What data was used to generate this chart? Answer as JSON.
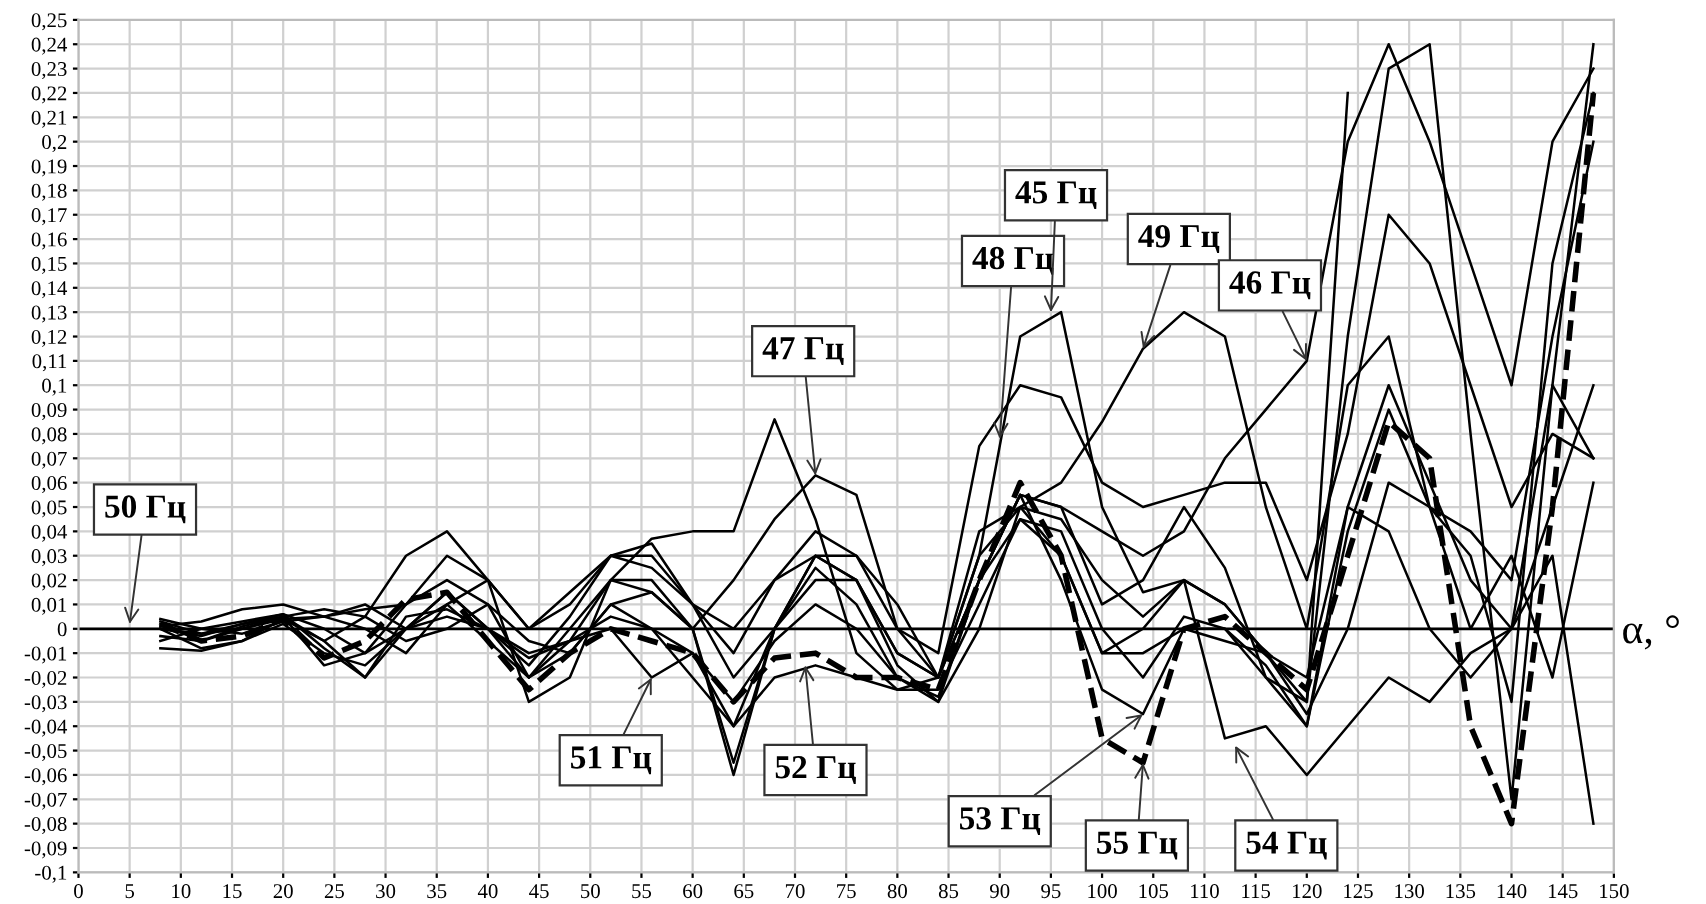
{
  "chart_data": {
    "type": "line",
    "xlabel": "α, °",
    "x": [
      8,
      12,
      16,
      20,
      24,
      28,
      32,
      36,
      40,
      44,
      48,
      52,
      56,
      60,
      64,
      68,
      72,
      76,
      80,
      84,
      88,
      92,
      96,
      100,
      104,
      108,
      112,
      116,
      120,
      124,
      128,
      132,
      136,
      140,
      144,
      148
    ],
    "xlim": [
      0,
      150
    ],
    "xticks": [
      0,
      5,
      10,
      15,
      20,
      25,
      30,
      35,
      40,
      45,
      50,
      55,
      60,
      65,
      70,
      75,
      80,
      85,
      90,
      95,
      100,
      105,
      110,
      115,
      120,
      125,
      130,
      135,
      140,
      145,
      150
    ],
    "ylim": [
      -0.1,
      0.25
    ],
    "yticks": [
      {
        "value": -0.1,
        "label": "-0,1"
      },
      {
        "value": -0.09,
        "label": "-0,09"
      },
      {
        "value": -0.08,
        "label": "-0,08"
      },
      {
        "value": -0.07,
        "label": "-0,07"
      },
      {
        "value": -0.06,
        "label": "-0,06"
      },
      {
        "value": -0.05,
        "label": "-0,05"
      },
      {
        "value": -0.04,
        "label": "-0,04"
      },
      {
        "value": -0.03,
        "label": "-0,03"
      },
      {
        "value": -0.02,
        "label": "-0,02"
      },
      {
        "value": -0.01,
        "label": "-0,01"
      },
      {
        "value": 0,
        "label": "0"
      },
      {
        "value": 0.01,
        "label": "0,01"
      },
      {
        "value": 0.02,
        "label": "0,02"
      },
      {
        "value": 0.03,
        "label": "0,03"
      },
      {
        "value": 0.04,
        "label": "0,04"
      },
      {
        "value": 0.05,
        "label": "0,05"
      },
      {
        "value": 0.06,
        "label": "0,06"
      },
      {
        "value": 0.07,
        "label": "0,07"
      },
      {
        "value": 0.08,
        "label": "0,08"
      },
      {
        "value": 0.09,
        "label": "0,09"
      },
      {
        "value": 0.1,
        "label": "0,1"
      },
      {
        "value": 0.11,
        "label": "0,11"
      },
      {
        "value": 0.12,
        "label": "0,12"
      },
      {
        "value": 0.13,
        "label": "0,13"
      },
      {
        "value": 0.14,
        "label": "0,14"
      },
      {
        "value": 0.15,
        "label": "0,15"
      },
      {
        "value": 0.16,
        "label": "0,16"
      },
      {
        "value": 0.17,
        "label": "0,17"
      },
      {
        "value": 0.18,
        "label": "0,18"
      },
      {
        "value": 0.19,
        "label": "0,19"
      },
      {
        "value": 0.2,
        "label": "0,2"
      },
      {
        "value": 0.21,
        "label": "0,21"
      },
      {
        "value": 0.22,
        "label": "0,22"
      },
      {
        "value": 0.23,
        "label": "0,23"
      },
      {
        "value": 0.24,
        "label": "0,24"
      },
      {
        "value": 0.25,
        "label": "0,25"
      }
    ],
    "grid": true,
    "marker": "none",
    "line_style": "solid",
    "ref_lines": [
      {
        "axis": "y",
        "value": 0,
        "color": "#000000"
      }
    ],
    "series": [
      {
        "color": "#000000",
        "values": [
          0.003,
          -0.002,
          0.0,
          0.005,
          -0.005,
          0.005,
          0.03,
          0.04,
          0.02,
          -0.03,
          -0.02,
          0.02,
          0.037,
          0.04,
          0.04,
          0.086,
          0.045,
          -0.01,
          -0.025,
          -0.02,
          0.03,
          0.12,
          0.13,
          0.05,
          0.015,
          0.02,
          0.01,
          -0.01,
          -0.03,
          0.22,
          null,
          null,
          null,
          null,
          null,
          null
        ]
      },
      {
        "color": "#000000",
        "values": [
          -0.008,
          -0.009,
          -0.005,
          0.004,
          0.005,
          0.0,
          -0.01,
          0.01,
          0.02,
          0.0,
          0.01,
          0.03,
          0.03,
          0.01,
          -0.01,
          0.02,
          0.03,
          0.03,
          0.01,
          -0.02,
          0.02,
          0.055,
          0.05,
          0.04,
          0.03,
          0.04,
          0.07,
          0.09,
          0.11,
          0.2,
          0.24,
          0.2,
          0.15,
          0.1,
          0.2,
          0.23
        ]
      },
      {
        "color": "#000000",
        "values": [
          -0.005,
          0.0,
          0.003,
          0.006,
          0.0,
          -0.01,
          0.01,
          0.02,
          0.01,
          -0.02,
          -0.005,
          0.02,
          0.015,
          0.0,
          0.02,
          0.045,
          0.063,
          0.055,
          0.0,
          -0.02,
          0.02,
          0.055,
          0.05,
          0.01,
          0.02,
          0.05,
          0.025,
          -0.02,
          -0.03,
          0.12,
          0.23,
          0.24,
          0.08,
          -0.07,
          0.1,
          0.24
        ]
      },
      {
        "color": "#000000",
        "values": [
          0.001,
          0.003,
          0.008,
          0.01,
          0.005,
          0.008,
          0.01,
          0.03,
          0.02,
          0.0,
          0.015,
          0.03,
          0.035,
          0.01,
          0.0,
          0.02,
          0.04,
          0.03,
          0.0,
          -0.01,
          0.075,
          0.1,
          0.095,
          0.06,
          0.05,
          0.055,
          0.06,
          0.06,
          0.02,
          0.08,
          0.17,
          0.15,
          0.1,
          0.05,
          0.08,
          0.07
        ]
      },
      {
        "color": "#000000",
        "values": [
          0.0,
          -0.002,
          0.002,
          0.005,
          0.008,
          0.005,
          -0.005,
          0.0,
          0.01,
          -0.005,
          -0.01,
          0.01,
          0.0,
          -0.02,
          -0.04,
          0.0,
          0.03,
          0.02,
          -0.01,
          -0.02,
          0.04,
          0.05,
          0.06,
          0.085,
          0.115,
          0.13,
          0.12,
          0.05,
          0.0,
          0.1,
          0.12,
          0.05,
          0.0,
          0.03,
          -0.02,
          0.06
        ]
      },
      {
        "color": "#000000",
        "values": [
          0.004,
          0.0,
          -0.002,
          0.003,
          0.005,
          0.01,
          0.0,
          0.015,
          0.0,
          -0.015,
          0.005,
          0.03,
          0.025,
          0.01,
          -0.02,
          0.0,
          0.02,
          0.02,
          -0.01,
          -0.02,
          0.03,
          0.05,
          0.045,
          0.02,
          0.005,
          0.02,
          0.01,
          -0.01,
          -0.02,
          0.05,
          0.1,
          0.06,
          0.02,
          0.0,
          0.05,
          0.1
        ]
      },
      {
        "color": "#000000",
        "values": [
          0.0,
          -0.003,
          0.002,
          0.006,
          -0.008,
          -0.02,
          0.005,
          0.008,
          0.0,
          -0.01,
          -0.005,
          0.0,
          -0.02,
          -0.01,
          -0.03,
          -0.005,
          0.01,
          0.0,
          -0.02,
          -0.03,
          0.02,
          0.045,
          0.04,
          0.0,
          -0.02,
          0.005,
          0.0,
          -0.02,
          -0.04,
          0.04,
          0.09,
          0.05,
          0.04,
          0.02,
          0.12,
          0.2
        ]
      },
      {
        "color": "#000000",
        "values": [
          0.002,
          -0.005,
          0.001,
          0.005,
          -0.015,
          -0.01,
          0.0,
          0.005,
          0.0,
          -0.012,
          -0.005,
          0.005,
          0.0,
          -0.01,
          -0.04,
          -0.02,
          -0.015,
          -0.02,
          -0.025,
          -0.025,
          0.01,
          0.045,
          0.03,
          -0.01,
          -0.01,
          0.0,
          -0.005,
          -0.01,
          -0.035,
          0.0,
          0.06,
          0.05,
          0.03,
          -0.03,
          0.15,
          0.22
        ]
      },
      {
        "color": "#000000",
        "values": [
          -0.003,
          -0.005,
          0.0,
          0.004,
          -0.005,
          -0.02,
          0.0,
          0.015,
          0.0,
          -0.02,
          0.0,
          0.02,
          0.02,
          0.0,
          -0.055,
          0.0,
          0.025,
          0.01,
          -0.02,
          -0.028,
          0.02,
          0.055,
          0.02,
          -0.025,
          -0.035,
          0.0,
          0.0,
          -0.015,
          -0.04,
          0.05,
          0.04,
          0.0,
          -0.02,
          0.0,
          0.1,
          0.07
        ]
      },
      {
        "color": "#000000",
        "values": [
          0.0,
          -0.008,
          -0.005,
          0.002,
          -0.01,
          -0.015,
          0.0,
          0.01,
          -0.005,
          -0.02,
          -0.01,
          0.01,
          0.015,
          0.0,
          -0.06,
          0.0,
          0.03,
          0.02,
          -0.015,
          -0.03,
          0.0,
          0.05,
          0.03,
          -0.01,
          0.0,
          0.02,
          -0.045,
          -0.04,
          -0.06,
          -0.04,
          -0.02,
          -0.03,
          -0.01,
          0.0,
          0.03,
          -0.08
        ]
      },
      {
        "color": "#000000",
        "line_style": "dashed",
        "values": [
          0.002,
          -0.005,
          -0.003,
          0.004,
          -0.012,
          -0.005,
          0.012,
          0.015,
          -0.005,
          -0.025,
          -0.01,
          0.0,
          -0.005,
          -0.01,
          -0.03,
          -0.012,
          -0.01,
          -0.02,
          -0.02,
          -0.025,
          0.02,
          0.06,
          0.03,
          -0.045,
          -0.055,
          0.0,
          0.005,
          -0.01,
          -0.025,
          0.03,
          0.085,
          0.07,
          -0.04,
          -0.08,
          0.05,
          0.22
        ]
      }
    ],
    "annotations": [
      {
        "text": "50 Гц",
        "x": 5,
        "y": 0.002
      },
      {
        "text": "47 Гц",
        "x": 72,
        "y": 0.063
      },
      {
        "text": "48 Гц",
        "x": 90,
        "y": 0.078
      },
      {
        "text": "45 Гц",
        "x": 95,
        "y": 0.13
      },
      {
        "text": "49 Гц",
        "x": 104,
        "y": 0.115
      },
      {
        "text": "46 Гц",
        "x": 120,
        "y": 0.11
      },
      {
        "text": "51 Гц",
        "x": 56,
        "y": -0.02
      },
      {
        "text": "52 Гц",
        "x": 71,
        "y": -0.015
      },
      {
        "text": "53 Гц",
        "x": 104,
        "y": -0.035
      },
      {
        "text": "55 Гц",
        "x": 104,
        "y": -0.055
      },
      {
        "text": "54 Гц",
        "x": 113,
        "y": -0.048
      }
    ]
  }
}
